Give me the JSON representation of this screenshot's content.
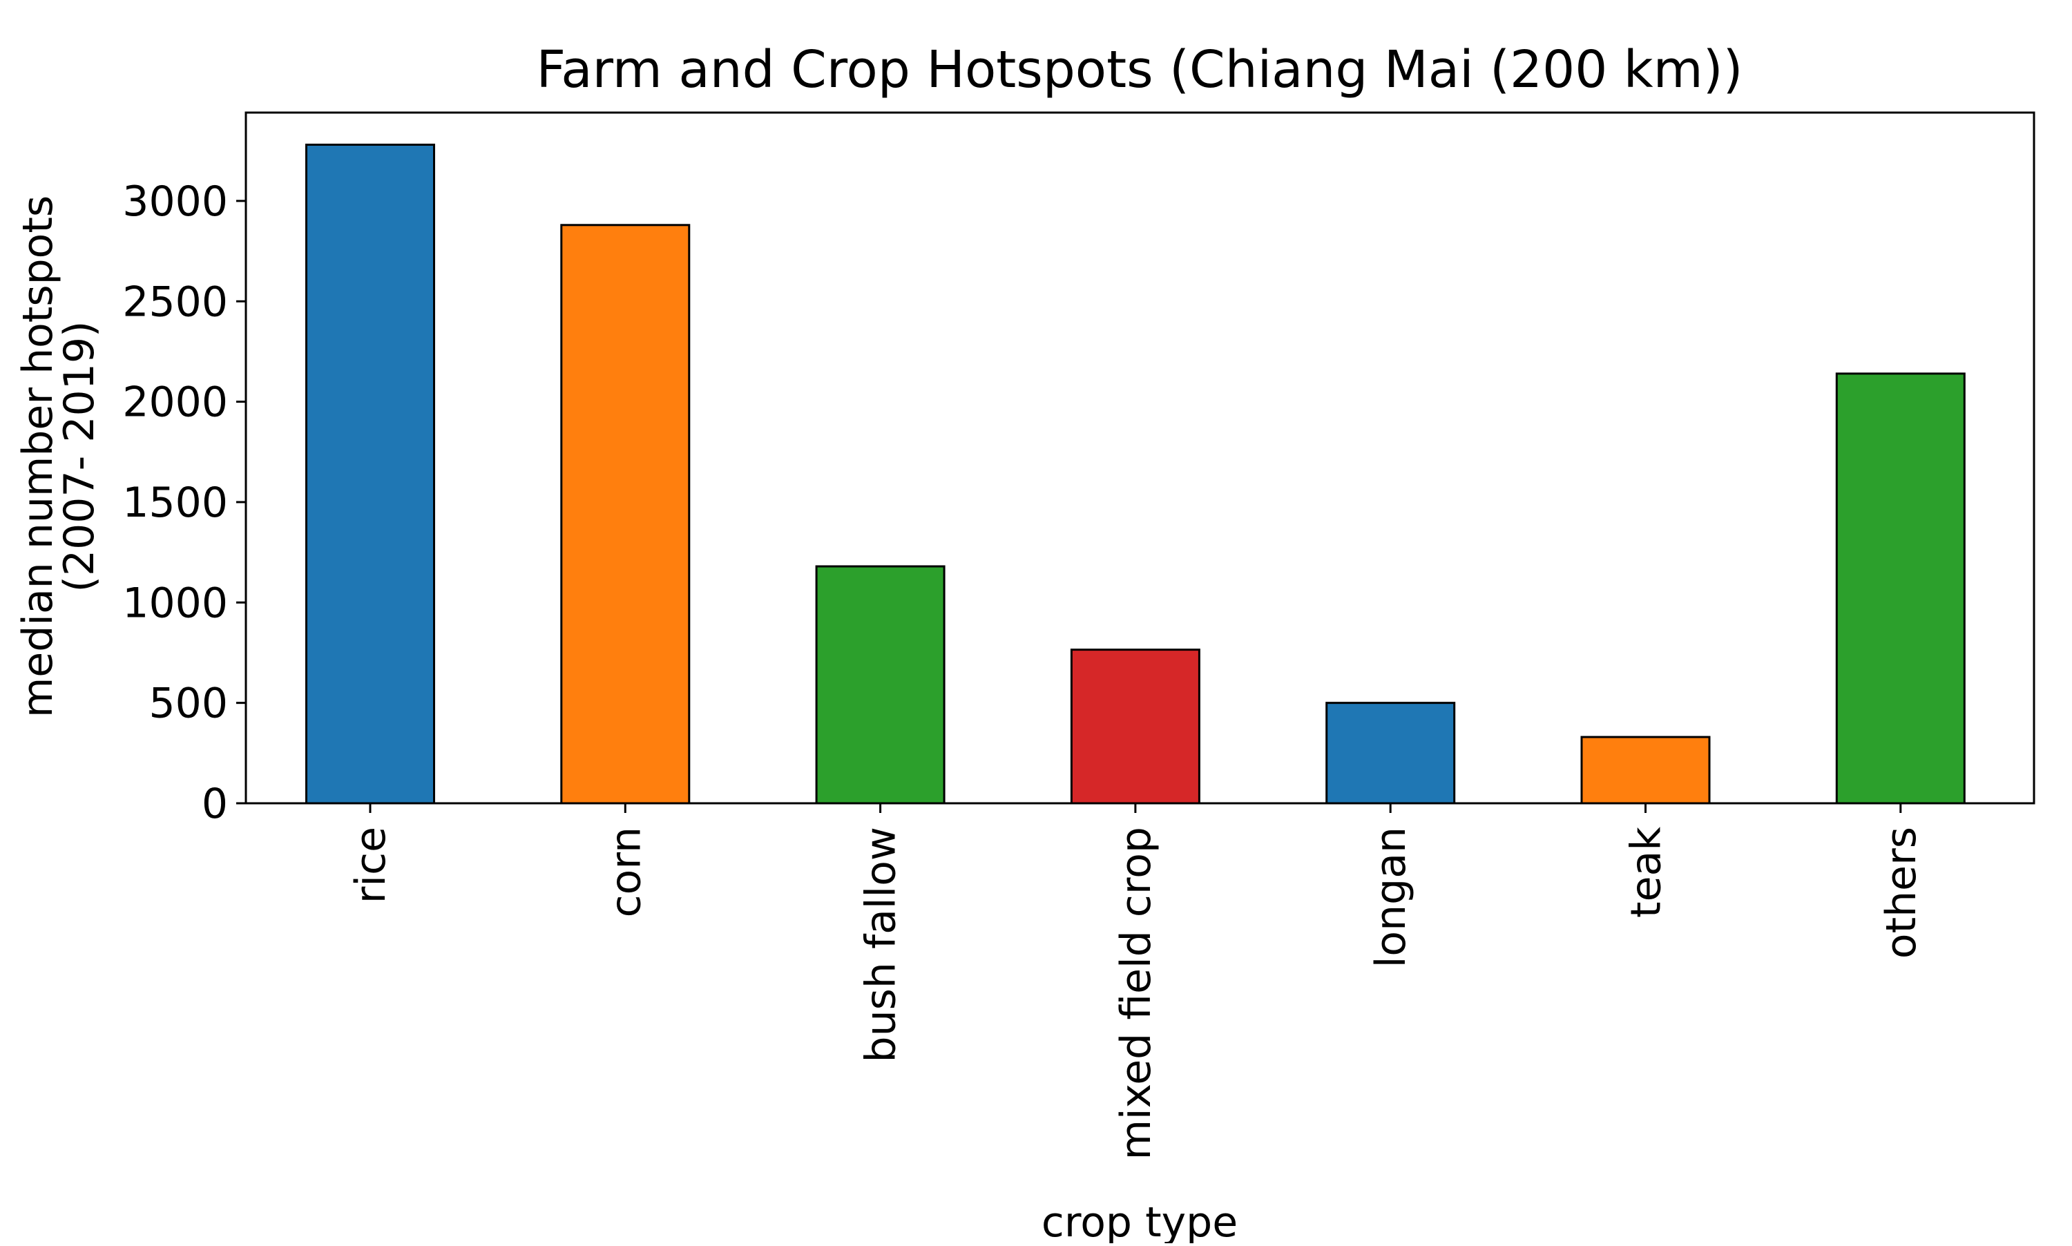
{
  "chart_data": {
    "type": "bar",
    "title": "Farm and Crop Hotspots (Chiang Mai (200 km))",
    "xlabel": "crop type",
    "ylabel_lines": [
      "median number hotspots",
      "(2007- 2019)"
    ],
    "categories": [
      "rice",
      "corn",
      "bush fallow",
      "mixed field crop",
      "longan",
      "teak",
      "others"
    ],
    "values": [
      3280,
      2880,
      1180,
      765,
      500,
      330,
      2140
    ],
    "colors": [
      "#1f77b4",
      "#ff7f0e",
      "#2ca02c",
      "#d62728",
      "#1f77b4",
      "#ff7f0e",
      "#2ca02c"
    ],
    "ylim": [
      0,
      3440
    ],
    "yticks": [
      0,
      500,
      1000,
      1500,
      2000,
      2500,
      3000
    ],
    "grid": false,
    "legend": false
  }
}
